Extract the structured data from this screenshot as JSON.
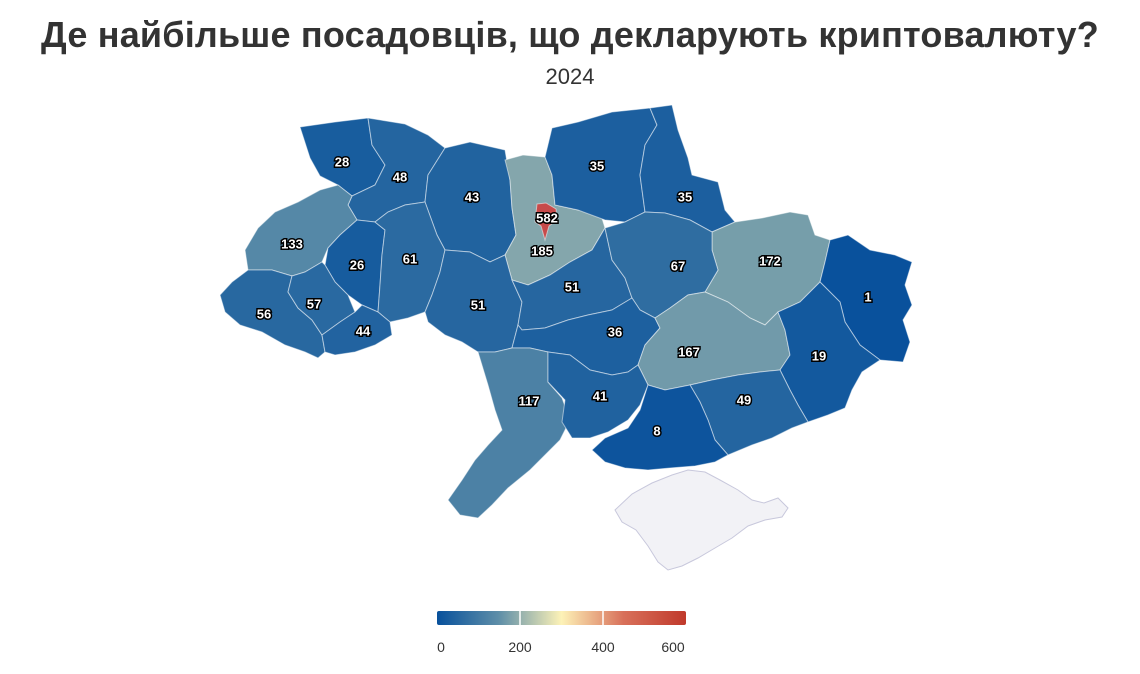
{
  "title": "Де найбільше посадовців, що декларують криптовалюту?",
  "subtitle": "2024",
  "colors": {
    "scale": [
      "#08519c",
      "#5f8fa8",
      "#fdf2b7",
      "#d8705a",
      "#c0392b"
    ],
    "kyiv_city": "#c74a4a",
    "crimea": "#f2f2f6"
  },
  "legend": {
    "min": 0,
    "max": 600,
    "ticks": [
      "0",
      "200",
      "400",
      "600"
    ]
  },
  "chart_data": {
    "type": "choropleth",
    "regions": [
      {
        "id": "volyn",
        "value": 28
      },
      {
        "id": "rivne",
        "value": 48
      },
      {
        "id": "zhytomyr",
        "value": 43
      },
      {
        "id": "kyiv-oblast",
        "value": 185
      },
      {
        "id": "kyiv-city",
        "value": 582
      },
      {
        "id": "chernihiv",
        "value": 35
      },
      {
        "id": "sumy",
        "value": 35
      },
      {
        "id": "kharkiv",
        "value": 172
      },
      {
        "id": "luhansk",
        "value": 1
      },
      {
        "id": "lviv",
        "value": 133
      },
      {
        "id": "ternopil",
        "value": 26
      },
      {
        "id": "khmelnytskyi",
        "value": 61
      },
      {
        "id": "vinnytsia",
        "value": 51
      },
      {
        "id": "cherkasy",
        "value": 51
      },
      {
        "id": "poltava",
        "value": 67
      },
      {
        "id": "zakarpattia",
        "value": 56
      },
      {
        "id": "ivano-frankivsk",
        "value": 57
      },
      {
        "id": "chernivtsi",
        "value": 44
      },
      {
        "id": "kirovohrad",
        "value": 36
      },
      {
        "id": "dnipropetrovsk",
        "value": 167
      },
      {
        "id": "donetsk",
        "value": 19
      },
      {
        "id": "odesa",
        "value": 117
      },
      {
        "id": "mykolaiv",
        "value": 41
      },
      {
        "id": "zaporizhzhia",
        "value": 49
      },
      {
        "id": "kherson",
        "value": 8
      }
    ]
  }
}
